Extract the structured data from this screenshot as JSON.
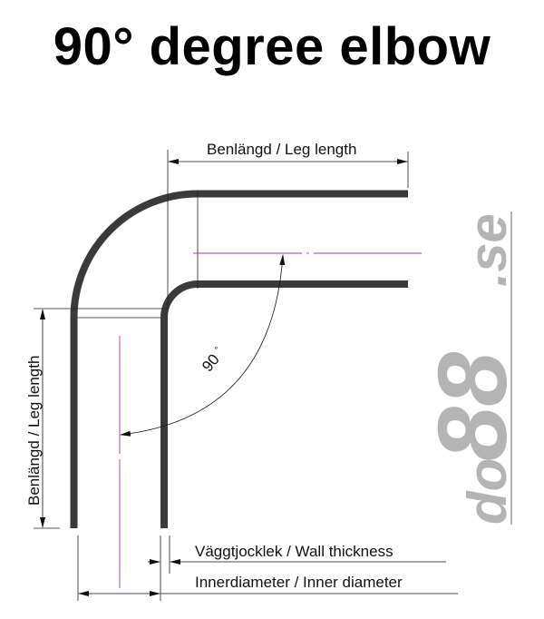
{
  "title": "90° degree elbow",
  "labels": {
    "leg_length_top": "Benlängd / Leg length",
    "leg_length_side": "Benlängd / Leg length",
    "angle": "90",
    "angle_unit": "°",
    "wall_thickness": "Väggtjocklek / Wall thickness",
    "inner_diameter": "Innerdiameter / Inner diameter"
  },
  "logo": {
    "text_a": "do",
    "text_b": "88",
    "text_c": ".se"
  },
  "colors": {
    "tube": "#3a3a3a",
    "centerline": "#9b3fa0",
    "logo": "#b4b4b4"
  }
}
